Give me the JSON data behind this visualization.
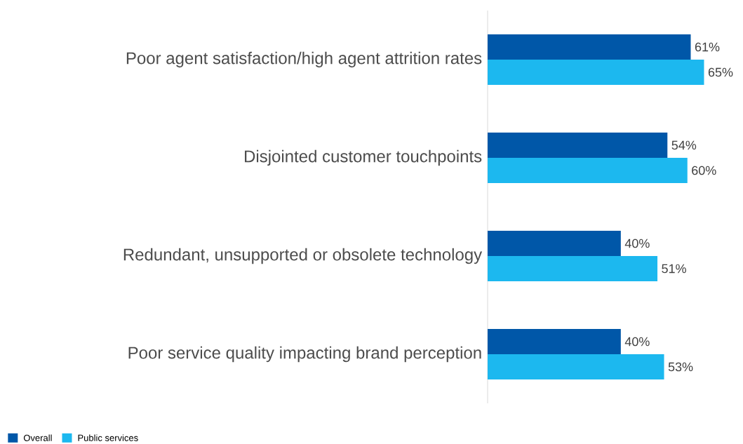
{
  "chart_data": {
    "type": "bar",
    "orientation": "horizontal",
    "categories": [
      "Poor agent satisfaction/high agent attrition rates",
      "Disjointed customer touchpoints",
      "Redundant, unsupported or obsolete technology",
      "Poor service quality impacting brand perception"
    ],
    "series": [
      {
        "name": "Overall",
        "color": "#0057a8",
        "values": [
          61,
          54,
          40,
          40
        ],
        "value_labels": [
          "61%",
          "54%",
          "40%",
          "40%"
        ]
      },
      {
        "name": "Public services",
        "color": "#1cb8ef",
        "values": [
          65,
          60,
          51,
          53
        ],
        "value_labels": [
          "65%",
          "60%",
          "51%",
          "53%"
        ]
      }
    ],
    "legend": "bottom left"
  }
}
